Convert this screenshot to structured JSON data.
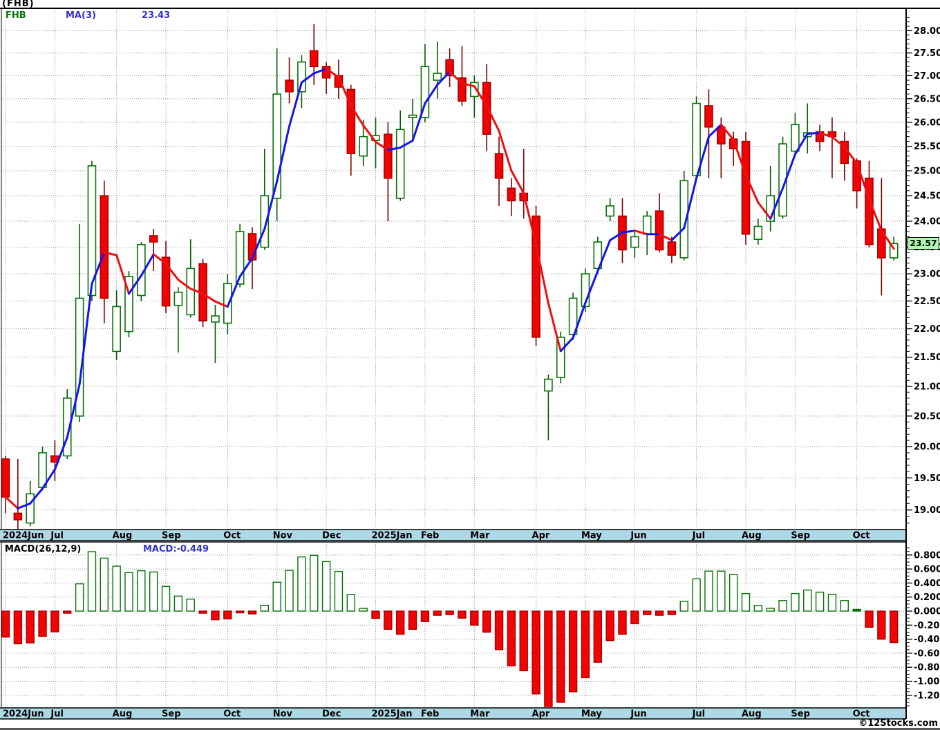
{
  "header": {
    "title": "(FHB)"
  },
  "price_pane": {
    "legend_symbol": "FHB",
    "legend_ma": "MA(3)",
    "legend_ma_value": "23.43",
    "last_price": "23.57"
  },
  "macd_pane": {
    "legend": "MACD(26,12,9)",
    "legend_value": "MACD:-0.449"
  },
  "footer": {
    "watermark": "©12Stocks.com"
  },
  "colors": {
    "up_outline": "#067206",
    "up_fill": "#FFFFFF",
    "down_fill": "#F00404",
    "down_outline": "#A80000",
    "wick_up": "#065A06",
    "wick_down": "#7A0000",
    "ma_up": "#1414EE",
    "ma_down": "#EE1010",
    "grid": "#999999",
    "band_bg": "#ADD8E6",
    "border": "#000000",
    "axis_text": "#000000",
    "last_price_bg": "#AEF9AE"
  },
  "chart_data": [
    {
      "type": "candlestick",
      "title": "(FHB)",
      "symbol": "FHB",
      "overlay": "MA(3)",
      "overlay_last": 23.43,
      "last_close": 23.57,
      "y_scale": "log",
      "ylim": [
        18.7,
        28.5
      ],
      "grid": true,
      "tick_values": [
        28.0,
        27.5,
        27.0,
        26.5,
        26.0,
        25.5,
        25.0,
        24.5,
        24.0,
        23.5,
        23.0,
        22.5,
        22.0,
        21.5,
        21.0,
        20.5,
        20.0,
        19.5,
        19.0
      ],
      "tick_labels": [
        "28.00",
        "27.50",
        "27.00",
        "26.50",
        "26.00",
        "25.50",
        "25.00",
        "24.50",
        "24.00",
        "23.50",
        "23.00",
        "22.50",
        "22.00",
        "21.50",
        "21.00",
        "20.50",
        "20.00",
        "19.50",
        "19.00"
      ],
      "months": [
        {
          "t": "2024Jun",
          "i": 0
        },
        {
          "t": "Jul",
          "i": 4
        },
        {
          "t": "Aug",
          "i": 9
        },
        {
          "t": "Sep",
          "i": 13
        },
        {
          "t": "Oct",
          "i": 18
        },
        {
          "t": "Nov",
          "i": 22
        },
        {
          "t": "Dec",
          "i": 26
        },
        {
          "t": "2025Jan",
          "i": 30
        },
        {
          "t": "Feb",
          "i": 34
        },
        {
          "t": "Mar",
          "i": 38
        },
        {
          "t": "Apr",
          "i": 43
        },
        {
          "t": "May",
          "i": 47
        },
        {
          "t": "Jun",
          "i": 51
        },
        {
          "t": "Jul",
          "i": 56
        },
        {
          "t": "Aug",
          "i": 60
        },
        {
          "t": "Sep",
          "i": 64
        },
        {
          "t": "Oct",
          "i": 69
        }
      ],
      "ohlc": [
        [
          19.8,
          19.85,
          18.95,
          19.2
        ],
        [
          18.95,
          19.8,
          18.65,
          18.85
        ],
        [
          18.8,
          19.45,
          18.75,
          19.25
        ],
        [
          19.35,
          20.0,
          19.3,
          19.9
        ],
        [
          19.85,
          20.1,
          19.45,
          19.75
        ],
        [
          19.85,
          20.95,
          19.8,
          20.8
        ],
        [
          20.5,
          23.95,
          20.4,
          22.55
        ],
        [
          22.6,
          25.2,
          22.5,
          25.1
        ],
        [
          24.5,
          24.8,
          22.1,
          22.55
        ],
        [
          21.6,
          22.7,
          21.45,
          22.4
        ],
        [
          21.95,
          23.05,
          21.85,
          22.95
        ],
        [
          22.6,
          23.6,
          22.5,
          23.55
        ],
        [
          23.72,
          23.85,
          23.05,
          23.6
        ],
        [
          23.31,
          23.62,
          22.28,
          22.41
        ],
        [
          22.42,
          22.75,
          21.58,
          22.66
        ],
        [
          22.25,
          23.65,
          22.2,
          23.1
        ],
        [
          23.19,
          23.28,
          22.03,
          22.14
        ],
        [
          22.12,
          22.43,
          21.4,
          22.23
        ],
        [
          22.1,
          23.0,
          21.9,
          22.82
        ],
        [
          22.81,
          23.95,
          22.75,
          23.8
        ],
        [
          23.76,
          23.88,
          22.72,
          23.26
        ],
        [
          23.5,
          25.45,
          23.45,
          24.5
        ],
        [
          24.45,
          27.6,
          24.0,
          26.6
        ],
        [
          26.9,
          27.4,
          26.4,
          26.65
        ],
        [
          26.65,
          27.45,
          26.3,
          27.3
        ],
        [
          27.55,
          28.15,
          26.8,
          27.2
        ],
        [
          27.2,
          27.3,
          26.6,
          26.95
        ],
        [
          27.0,
          27.35,
          26.5,
          26.75
        ],
        [
          26.7,
          26.8,
          24.9,
          25.35
        ],
        [
          25.3,
          26.05,
          25.1,
          25.7
        ],
        [
          25.62,
          26.1,
          25.05,
          25.72
        ],
        [
          25.75,
          26.0,
          24.0,
          24.85
        ],
        [
          24.45,
          26.25,
          24.4,
          25.85
        ],
        [
          26.1,
          26.5,
          25.65,
          26.15
        ],
        [
          26.1,
          27.7,
          26.0,
          27.2
        ],
        [
          26.9,
          27.75,
          26.5,
          27.05
        ],
        [
          27.35,
          27.6,
          26.75,
          27.0
        ],
        [
          26.95,
          27.65,
          26.35,
          26.45
        ],
        [
          26.55,
          27.0,
          26.1,
          26.85
        ],
        [
          26.85,
          27.25,
          25.4,
          25.75
        ],
        [
          25.35,
          25.7,
          24.3,
          24.85
        ],
        [
          24.65,
          24.85,
          24.1,
          24.4
        ],
        [
          24.55,
          25.45,
          24.05,
          24.4
        ],
        [
          24.1,
          24.3,
          21.7,
          21.85
        ],
        [
          20.92,
          21.2,
          20.1,
          21.12
        ],
        [
          21.15,
          21.95,
          21.05,
          21.85
        ],
        [
          21.9,
          22.65,
          21.8,
          22.55
        ],
        [
          22.4,
          23.1,
          22.3,
          23.0
        ],
        [
          23.1,
          23.7,
          23.0,
          23.6
        ],
        [
          24.1,
          24.45,
          24.0,
          24.3
        ],
        [
          24.1,
          24.45,
          23.2,
          23.45
        ],
        [
          23.5,
          23.8,
          23.3,
          23.7
        ],
        [
          23.75,
          24.2,
          23.35,
          24.1
        ],
        [
          24.2,
          24.55,
          23.4,
          23.45
        ],
        [
          23.6,
          23.7,
          23.2,
          23.35
        ],
        [
          23.3,
          25.0,
          23.25,
          24.8
        ],
        [
          24.9,
          26.55,
          24.85,
          26.4
        ],
        [
          26.35,
          26.7,
          24.85,
          25.9
        ],
        [
          25.9,
          26.1,
          24.85,
          25.55
        ],
        [
          25.65,
          25.8,
          25.1,
          25.45
        ],
        [
          25.6,
          25.8,
          23.55,
          23.75
        ],
        [
          23.65,
          24.05,
          23.55,
          23.9
        ],
        [
          24.0,
          25.1,
          23.8,
          24.5
        ],
        [
          24.1,
          25.7,
          24.05,
          25.55
        ],
        [
          25.4,
          26.2,
          25.35,
          25.95
        ],
        [
          25.7,
          26.4,
          25.35,
          25.78
        ],
        [
          25.8,
          25.95,
          25.4,
          25.6
        ],
        [
          25.8,
          26.1,
          24.85,
          25.7
        ],
        [
          25.6,
          25.8,
          24.8,
          25.15
        ],
        [
          25.2,
          25.25,
          24.25,
          24.6
        ],
        [
          24.85,
          25.2,
          23.5,
          23.55
        ],
        [
          23.85,
          24.85,
          22.6,
          23.3
        ],
        [
          23.3,
          23.7,
          23.25,
          23.57
        ]
      ]
    },
    {
      "type": "bar",
      "title": "MACD(26,12,9)",
      "last_label": "MACD:-0.449",
      "ylim": [
        -1.45,
        0.95
      ],
      "grid": true,
      "tick_values": [
        0.8,
        0.6,
        0.4,
        0.2,
        0.0,
        -0.2,
        -0.4,
        -0.6,
        -0.8,
        -1.0,
        -1.2
      ],
      "tick_labels": [
        "0.800",
        "0.600",
        "0.400",
        "0.200",
        "0.000",
        "-0.200",
        "-0.400",
        "-0.600",
        "-0.800",
        "-1.000",
        "-1.200"
      ],
      "values": [
        -0.37,
        -0.466,
        -0.453,
        -0.36,
        -0.295,
        -0.03,
        0.388,
        0.847,
        0.755,
        0.64,
        0.549,
        0.575,
        0.558,
        0.352,
        0.214,
        0.171,
        -0.03,
        -0.124,
        -0.111,
        -0.02,
        -0.04,
        0.083,
        0.411,
        0.581,
        0.772,
        0.795,
        0.706,
        0.565,
        0.237,
        0.039,
        -0.104,
        -0.26,
        -0.33,
        -0.26,
        -0.15,
        -0.06,
        -0.05,
        -0.1,
        -0.2,
        -0.3,
        -0.55,
        -0.78,
        -0.85,
        -1.18,
        -1.36,
        -1.3,
        -1.15,
        -0.95,
        -0.73,
        -0.42,
        -0.33,
        -0.18,
        -0.05,
        -0.06,
        -0.05,
        0.14,
        0.46,
        0.57,
        0.57,
        0.52,
        0.25,
        0.08,
        0.04,
        0.15,
        0.25,
        0.3,
        0.27,
        0.24,
        0.15,
        0.01,
        -0.23,
        -0.4,
        -0.449
      ]
    }
  ]
}
